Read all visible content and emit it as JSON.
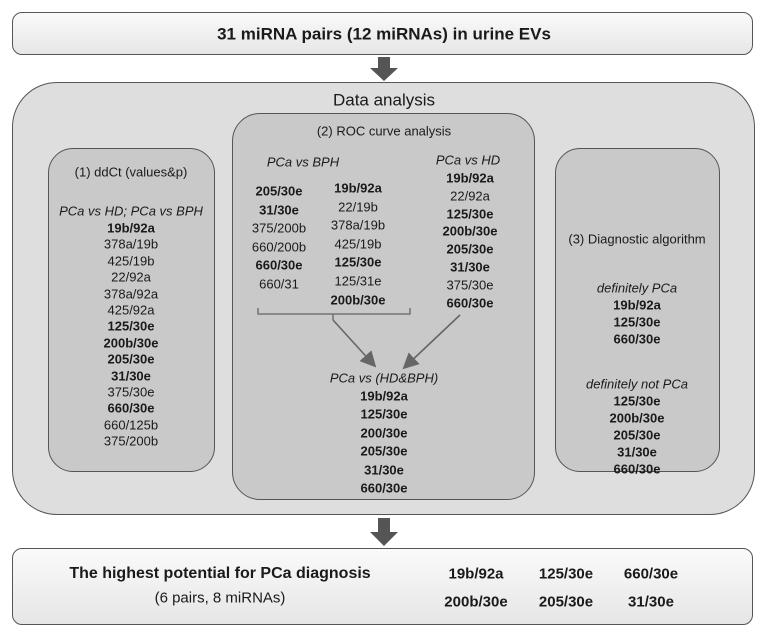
{
  "top": {
    "text": "31 miRNA pairs (12 miRNAs) in urine EVs"
  },
  "main": {
    "title": "Data analysis"
  },
  "panel1": {
    "title": "(1)  ddCt (values&p)",
    "subtitle": "PCa vs HD; PCa vs BPH",
    "items": [
      {
        "text": "19b/92a",
        "bold": true
      },
      {
        "text": "378a/19b",
        "bold": false
      },
      {
        "text": "425/19b",
        "bold": false
      },
      {
        "text": "22/92a",
        "bold": false
      },
      {
        "text": "378a/92a",
        "bold": false
      },
      {
        "text": "425/92a",
        "bold": false
      },
      {
        "text": "125/30e",
        "bold": true
      },
      {
        "text": "200b/30e",
        "bold": true
      },
      {
        "text": "205/30e",
        "bold": true
      },
      {
        "text": "31/30e",
        "bold": true
      },
      {
        "text": "375/30e",
        "bold": false
      },
      {
        "text": "660/30e",
        "bold": true
      },
      {
        "text": "660/125b",
        "bold": false
      },
      {
        "text": "375/200b",
        "bold": false
      }
    ]
  },
  "panel2": {
    "title": "(2)  ROC curve analysis",
    "bph": {
      "label": "PCa vs BPH",
      "column1": [
        {
          "text": "205/30e",
          "bold": true
        },
        {
          "text": "31/30e",
          "bold": true
        },
        {
          "text": "375/200b",
          "bold": false
        },
        {
          "text": "660/200b",
          "bold": false
        },
        {
          "text": "660/30e",
          "bold": true
        },
        {
          "text": "660/31",
          "bold": false
        }
      ],
      "column2": [
        {
          "text": "19b/92a",
          "bold": true
        },
        {
          "text": "22/19b",
          "bold": false
        },
        {
          "text": "378a/19b",
          "bold": false
        },
        {
          "text": "425/19b",
          "bold": false
        },
        {
          "text": "125/30e",
          "bold": true
        },
        {
          "text": "125/31e",
          "bold": false
        },
        {
          "text": "200b/30e",
          "bold": true
        }
      ]
    },
    "hd": {
      "label": "PCa vs HD",
      "items": [
        {
          "text": "19b/92a",
          "bold": true
        },
        {
          "text": "22/92a",
          "bold": false
        },
        {
          "text": "125/30e",
          "bold": true
        },
        {
          "text": "200b/30e",
          "bold": true
        },
        {
          "text": "205/30e",
          "bold": true
        },
        {
          "text": "31/30e",
          "bold": true
        },
        {
          "text": "375/30e",
          "bold": false
        },
        {
          "text": "660/30e",
          "bold": true
        }
      ]
    },
    "combined": {
      "label": "PCa vs (HD&BPH)",
      "items": [
        {
          "text": "19b/92a",
          "bold": true
        },
        {
          "text": "125/30e",
          "bold": true
        },
        {
          "text": "200/30e",
          "bold": true
        },
        {
          "text": "205/30e",
          "bold": true
        },
        {
          "text": "31/30e",
          "bold": true
        },
        {
          "text": "660/30e",
          "bold": true
        }
      ]
    }
  },
  "panel3": {
    "title": "(3)  Diagnostic algorithm",
    "pca": {
      "label": "definitely PCa",
      "items": [
        {
          "text": "19b/92a",
          "bold": true
        },
        {
          "text": "125/30e",
          "bold": true
        },
        {
          "text": "660/30e",
          "bold": true
        }
      ]
    },
    "not_pca": {
      "label": "definitely not PCa",
      "items": [
        {
          "text": "125/30e",
          "bold": true
        },
        {
          "text": "200b/30e",
          "bold": true
        },
        {
          "text": "205/30e",
          "bold": true
        },
        {
          "text": "31/30e",
          "bold": true
        },
        {
          "text": "660/30e",
          "bold": true
        }
      ]
    }
  },
  "bottom": {
    "title": "The highest potential for PCa diagnosis",
    "subtitle": "(6 pairs, 8 miRNAs)",
    "pairs": [
      "19b/92a",
      "125/30e",
      "660/30e",
      "200b/30e",
      "205/30e",
      "31/30e"
    ]
  }
}
